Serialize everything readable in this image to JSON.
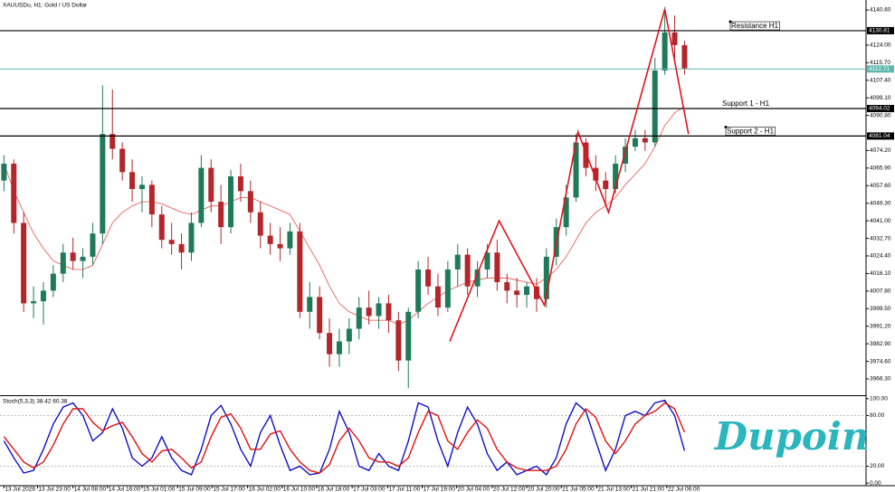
{
  "chart_data": [
    {
      "type": "candlestick",
      "title": "XAUUSDu, H1: Gold / US Dollar",
      "up_color": "#1f7a5a",
      "down_color": "#b3262b",
      "ma_color": "#e8504a",
      "pattern_color": "#e0141e",
      "xlim": [
        -0.4,
        87.4
      ],
      "ylim": [
        3958.6,
        4145.3
      ],
      "xticks": [
        {
          "value": 0,
          "label": "13 Jul 2026"
        },
        {
          "value": 3.4,
          "label": "13 Jul 23:00"
        },
        {
          "value": 7,
          "label": "14 Jul 08:00"
        },
        {
          "value": 10.5,
          "label": "14 Jul 16:00"
        },
        {
          "value": 14,
          "label": "15 Jul 01:00"
        },
        {
          "value": 17.6,
          "label": "15 Jul 09:00"
        },
        {
          "value": 21.1,
          "label": "15 Jul 17:00"
        },
        {
          "value": 24.7,
          "label": "16 Jul 02:00"
        },
        {
          "value": 28.2,
          "label": "16 Jul 10:00"
        },
        {
          "value": 31.7,
          "label": "16 Jul 18:00"
        },
        {
          "value": 35.3,
          "label": "17 Jul 03:00"
        },
        {
          "value": 38.9,
          "label": "17 Jul 11:00"
        },
        {
          "value": 42.4,
          "label": "17 Jul 19:00"
        },
        {
          "value": 45.9,
          "label": "20 Jul 04:00"
        },
        {
          "value": 49.5,
          "label": "20 Jul 12:00"
        },
        {
          "value": 53,
          "label": "20 Jul 20:00"
        },
        {
          "value": 56.5,
          "label": "21 Jul 05:00"
        },
        {
          "value": 60.1,
          "label": "21 Jul 13:00"
        },
        {
          "value": 63.6,
          "label": "21 Jul 21:00"
        },
        {
          "value": 67.2,
          "label": "22 Jul 06:00"
        }
      ],
      "yticks": [
        {
          "value": 4140.6,
          "label": "4140.60"
        },
        {
          "value": 4124,
          "label": "4124.00"
        },
        {
          "value": 4115.7,
          "label": "4115.70"
        },
        {
          "value": 4107.4,
          "label": "4107.40"
        },
        {
          "value": 4099.1,
          "label": "4099.10"
        },
        {
          "value": 4090.8,
          "label": "4090.80"
        },
        {
          "value": 4074.2,
          "label": "4074.20"
        },
        {
          "value": 4065.9,
          "label": "4065.90"
        },
        {
          "value": 4057.6,
          "label": "4057.60"
        },
        {
          "value": 4049.3,
          "label": "4049.30"
        },
        {
          "value": 4041,
          "label": "4041.00"
        },
        {
          "value": 4032.7,
          "label": "4032.70"
        },
        {
          "value": 4024.4,
          "label": "4024.40"
        },
        {
          "value": 4016.1,
          "label": "4016.10"
        },
        {
          "value": 4007.8,
          "label": "4007.80"
        },
        {
          "value": 3999.5,
          "label": "3999.50"
        },
        {
          "value": 3991.2,
          "label": "3991.20"
        },
        {
          "value": 3982.9,
          "label": "3982.90"
        },
        {
          "value": 3974.6,
          "label": "3974.60"
        },
        {
          "value": 3966.3,
          "label": "3966.30"
        }
      ],
      "ohlc": [
        [
          4060,
          4072,
          4055,
          4068
        ],
        [
          4068,
          4070,
          4035,
          4040
        ],
        [
          4040,
          4045,
          3998,
          4002
        ],
        [
          4002,
          4010,
          3995,
          4003
        ],
        [
          4003,
          4012,
          3992,
          4008
        ],
        [
          4008,
          4020,
          4005,
          4016
        ],
        [
          4016,
          4030,
          4012,
          4026
        ],
        [
          4026,
          4033,
          4018,
          4022
        ],
        [
          4022,
          4028,
          4014,
          4024
        ],
        [
          4024,
          4040,
          4020,
          4035
        ],
        [
          4035,
          4105,
          4030,
          4082
        ],
        [
          4082,
          4103,
          4070,
          4075
        ],
        [
          4075,
          4078,
          4060,
          4064
        ],
        [
          4064,
          4070,
          4050,
          4056
        ],
        [
          4056,
          4062,
          4045,
          4058
        ],
        [
          4058,
          4060,
          4038,
          4044
        ],
        [
          4044,
          4048,
          4028,
          4032
        ],
        [
          4032,
          4040,
          4025,
          4030
        ],
        [
          4030,
          4035,
          4018,
          4026
        ],
        [
          4026,
          4045,
          4022,
          4040
        ],
        [
          4040,
          4072,
          4038,
          4066
        ],
        [
          4066,
          4070,
          4045,
          4050
        ],
        [
          4050,
          4058,
          4030,
          4038
        ],
        [
          4038,
          4065,
          4035,
          4062
        ],
        [
          4062,
          4068,
          4050,
          4055
        ],
        [
          4055,
          4060,
          4040,
          4045
        ],
        [
          4045,
          4050,
          4028,
          4034
        ],
        [
          4034,
          4040,
          4025,
          4030
        ],
        [
          4030,
          4038,
          4022,
          4028
        ],
        [
          4028,
          4040,
          4025,
          4036
        ],
        [
          4036,
          4040,
          3995,
          3998
        ],
        [
          3998,
          4012,
          3990,
          4005
        ],
        [
          4005,
          4010,
          3985,
          3988
        ],
        [
          3988,
          3995,
          3972,
          3978
        ],
        [
          3978,
          3990,
          3972,
          3984
        ],
        [
          3984,
          3995,
          3978,
          3990
        ],
        [
          3990,
          4005,
          3985,
          4000
        ],
        [
          4000,
          4008,
          3992,
          3996
        ],
        [
          3996,
          4005,
          3990,
          4002
        ],
        [
          4002,
          4006,
          3988,
          3994
        ],
        [
          3994,
          3998,
          3970,
          3975
        ],
        [
          3975,
          4000,
          3962,
          3998
        ],
        [
          3998,
          4022,
          3995,
          4018
        ],
        [
          4018,
          4024,
          4006,
          4010
        ],
        [
          4010,
          4016,
          3996,
          4000
        ],
        [
          4000,
          4022,
          3998,
          4018
        ],
        [
          4018,
          4030,
          4010,
          4025
        ],
        [
          4025,
          4028,
          4006,
          4010
        ],
        [
          4010,
          4022,
          4005,
          4018
        ],
        [
          4018,
          4030,
          4014,
          4026
        ],
        [
          4026,
          4032,
          4008,
          4012
        ],
        [
          4012,
          4016,
          4002,
          4008
        ],
        [
          4008,
          4014,
          4000,
          4006
        ],
        [
          4006,
          4012,
          4000,
          4010
        ],
        [
          4010,
          4014,
          3998,
          4004
        ],
        [
          4004,
          4028,
          4000,
          4024
        ],
        [
          4024,
          4042,
          4020,
          4038
        ],
        [
          4038,
          4058,
          4034,
          4052
        ],
        [
          4052,
          4082,
          4050,
          4078
        ],
        [
          4078,
          4080,
          4062,
          4066
        ],
        [
          4066,
          4072,
          4055,
          4060
        ],
        [
          4060,
          4064,
          4048,
          4056
        ],
        [
          4056,
          4072,
          4054,
          4068
        ],
        [
          4068,
          4080,
          4064,
          4076
        ],
        [
          4076,
          4084,
          4074,
          4080
        ],
        [
          4080,
          4084,
          4074,
          4078
        ],
        [
          4078,
          4118,
          4076,
          4112
        ],
        [
          4112,
          4142,
          4110,
          4130
        ],
        [
          4130,
          4138,
          4118,
          4124
        ],
        [
          4124,
          4126,
          4110,
          4113
        ]
      ],
      "ma": [
        4068,
        4055,
        4045,
        4035,
        4028,
        4022,
        4020,
        4018,
        4018,
        4020,
        4030,
        4040,
        4045,
        4048,
        4050,
        4050,
        4049,
        4047,
        4045,
        4044,
        4046,
        4048,
        4048,
        4050,
        4052,
        4052,
        4050,
        4048,
        4046,
        4044,
        4036,
        4028,
        4020,
        4010,
        4002,
        3998,
        3996,
        3994,
        3994,
        3994,
        3992,
        3994,
        3998,
        4002,
        4005,
        4008,
        4010,
        4012,
        4013,
        4014,
        4014,
        4014,
        4013,
        4012,
        4011,
        4014,
        4018,
        4024,
        4032,
        4040,
        4045,
        4048,
        4052,
        4058,
        4063,
        4068,
        4076,
        4086,
        4092,
        4095
      ],
      "pattern": {
        "x": [
          45.2,
          50.2,
          54.8,
          58.2,
          61.3,
          67,
          69.4
        ],
        "values": [
          3984,
          4041,
          4001,
          4083,
          4045,
          4141,
          4082
        ]
      },
      "levels": [
        {
          "name": "Resistance H1",
          "value": 4130.81
        },
        {
          "name": "Support 1 - H1",
          "value": 4094.02
        },
        {
          "name": "Support 2 - H1",
          "value": 4081.04
        }
      ],
      "current_price": {
        "value": 4112.71,
        "color": "#5fb8b0"
      },
      "logo": "Dupoin",
      "logo_color": "#2bb5bd"
    },
    {
      "type": "line",
      "title": "Stoch(5,3,3) 38.42 60.38",
      "xlim": [
        -0.4,
        87.4
      ],
      "ylim": [
        -3,
        103
      ],
      "yticks": [
        {
          "value": 100,
          "label": "100.00"
        },
        {
          "value": 80,
          "label": "80.00"
        },
        {
          "value": 20,
          "label": "20.00"
        },
        {
          "value": 0,
          "label": "0.00"
        }
      ],
      "series": [
        {
          "color": "#1010c8",
          "values": [
            50,
            30,
            12,
            15,
            40,
            70,
            90,
            95,
            80,
            50,
            60,
            88,
            65,
            30,
            20,
            30,
            55,
            30,
            15,
            10,
            40,
            80,
            92,
            70,
            40,
            20,
            60,
            80,
            45,
            15,
            20,
            10,
            12,
            40,
            85,
            60,
            20,
            15,
            35,
            20,
            15,
            50,
            95,
            90,
            50,
            20,
            60,
            90,
            70,
            35,
            15,
            25,
            10,
            15,
            20,
            10,
            30,
            70,
            95,
            85,
            50,
            15,
            40,
            80,
            85,
            80,
            95,
            98,
            80,
            38.42
          ]
        },
        {
          "color": "#e01010",
          "values": [
            55,
            40,
            25,
            18,
            25,
            45,
            70,
            88,
            88,
            72,
            62,
            68,
            72,
            55,
            35,
            25,
            38,
            40,
            30,
            18,
            25,
            55,
            78,
            82,
            65,
            40,
            40,
            58,
            62,
            40,
            25,
            15,
            12,
            22,
            50,
            65,
            50,
            30,
            25,
            25,
            20,
            30,
            60,
            85,
            80,
            50,
            40,
            60,
            75,
            65,
            40,
            25,
            18,
            15,
            15,
            15,
            20,
            40,
            70,
            88,
            78,
            50,
            35,
            50,
            70,
            80,
            85,
            95,
            88,
            60.38
          ]
        }
      ]
    }
  ]
}
